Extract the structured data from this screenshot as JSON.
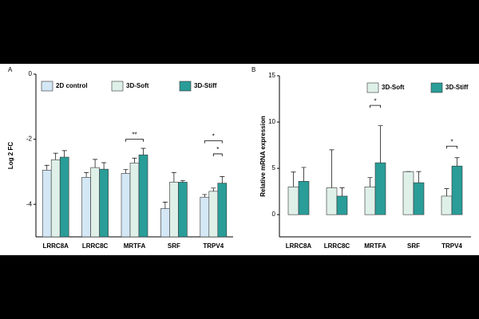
{
  "chart_data": [
    {
      "type": "bar",
      "panel_label": "A",
      "ylabel": "Log 2 FC",
      "categories": [
        "LRRC8A",
        "LRRC8C",
        "MRTFA",
        "SRF",
        "TRPV4"
      ],
      "series": [
        {
          "name": "2D control",
          "color": "#d4e7f5",
          "values": [
            -2.95,
            -3.17,
            -3.05,
            -4.13,
            -3.78
          ],
          "errors": [
            0.15,
            0.15,
            0.12,
            0.2,
            0.08
          ]
        },
        {
          "name": "3D-Soft",
          "color": "#dff0e9",
          "values": [
            -2.63,
            -2.87,
            -2.73,
            -3.32,
            -3.6
          ],
          "errors": [
            0.2,
            0.25,
            0.15,
            0.3,
            0.1
          ]
        },
        {
          "name": "3D-Stiff",
          "color": "#2a9d98",
          "values": [
            -2.55,
            -2.92,
            -2.48,
            -3.32,
            -3.35
          ],
          "errors": [
            0.2,
            0.2,
            0.2,
            0.05,
            0.2
          ]
        }
      ],
      "ylim": [
        -5,
        0
      ],
      "yticks": [
        0,
        -2,
        -4
      ],
      "legend": "top",
      "annotations": [
        {
          "text": "**"
        },
        {
          "text": "*"
        },
        {
          "text": "*"
        }
      ]
    },
    {
      "type": "bar",
      "panel_label": "B",
      "ylabel": "Relative mRNA expression",
      "categories": [
        "LRRC8A",
        "LRRC8C",
        "MRTFA",
        "SRF",
        "TRPV4"
      ],
      "series": [
        {
          "name": "3D-Soft",
          "color": "#dff0e9",
          "values": [
            3.0,
            2.9,
            3.0,
            4.65,
            2.0
          ],
          "errors": [
            1.6,
            4.1,
            1.0,
            0,
            0.8
          ]
        },
        {
          "name": "3D-Stiff",
          "color": "#2a9d98",
          "values": [
            3.6,
            2.0,
            5.6,
            3.45,
            5.25
          ],
          "errors": [
            1.5,
            0.9,
            4.0,
            1.2,
            0.9
          ]
        }
      ],
      "ylim": [
        -2.4,
        15
      ],
      "yticks": [
        0,
        5,
        10,
        15
      ],
      "legend": "top",
      "annotations": [
        {
          "text": "*"
        },
        {
          "text": "*"
        }
      ]
    }
  ]
}
